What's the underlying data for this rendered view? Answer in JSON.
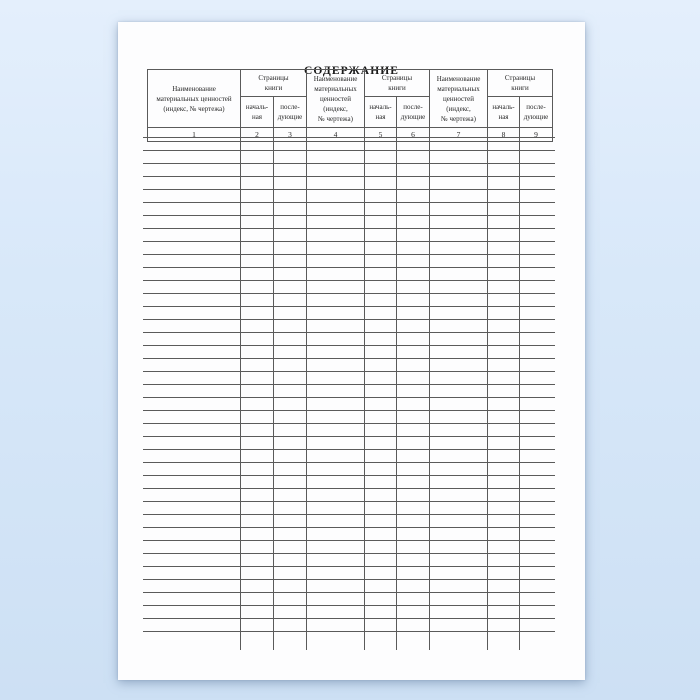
{
  "page": {
    "title": "СОДЕРЖАНИЕ"
  },
  "table": {
    "header": {
      "name_label_col1": "Наименование\nматериальных ценностей\n(индекс, № чертежа)",
      "name_label_col4": "Наименование\nматериальных\nценностей\n(индекс,\n№ чертежа)",
      "name_label_col7": "Наименование\nматериальных\nценностей\n(индекс,\n№ чертежа)",
      "pages_group_label": "Страницы\nкниги",
      "first_page_label": "началь-\nная",
      "next_pages_label": "после-\nдующие"
    },
    "column_numbers": [
      "1",
      "2",
      "3",
      "4",
      "5",
      "6",
      "7",
      "8",
      "9"
    ],
    "body_row_count": 38
  },
  "colors": {
    "background_top": "#e4effc",
    "background_bottom": "#cde0f4",
    "page_background": "#fdfdfe",
    "grid_line": "#5a5a5a",
    "text": "#1b1b1b"
  }
}
